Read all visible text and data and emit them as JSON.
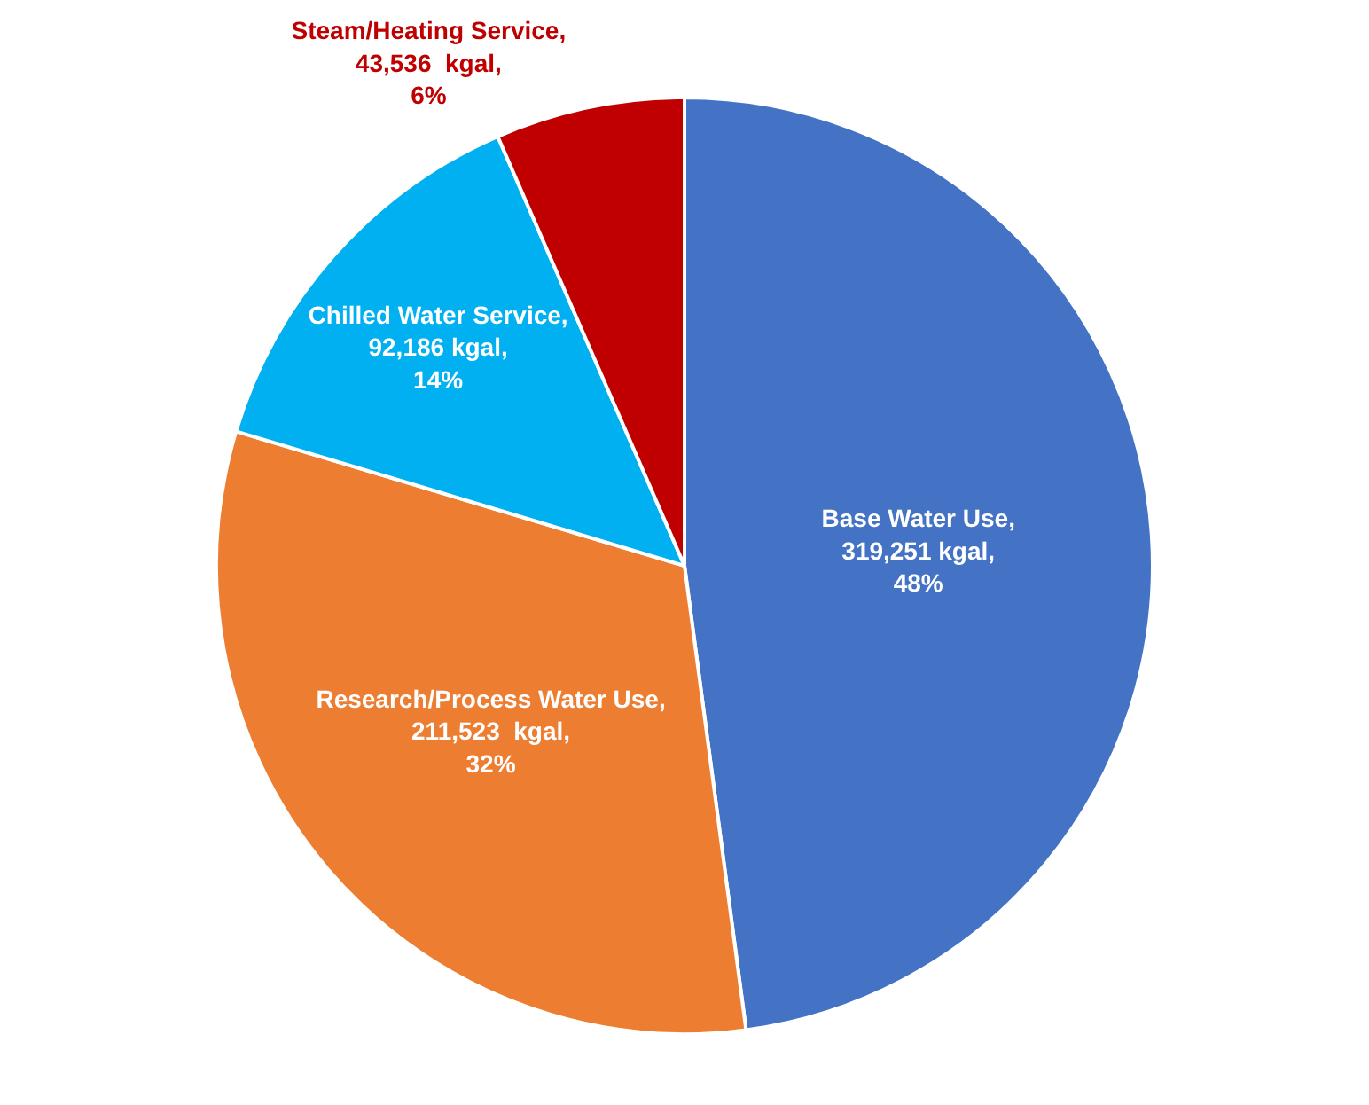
{
  "chart_data": {
    "type": "pie",
    "categories": [
      "Base Water Use",
      "Research/Process Water Use",
      "Chilled Water Service",
      "Steam/Heating Service"
    ],
    "values": [
      319251,
      211523,
      92186,
      43536
    ],
    "colors": [
      "#4472c4",
      "#ed7d31",
      "#00b0f0",
      "#c00000"
    ],
    "value_labels": [
      ",\n319,251 kgal,\n48%",
      ",\n211,523  kgal,\n32%",
      ",\n92,186 kgal,\n14%",
      ",\n43,536  kgal,\n6%"
    ],
    "legend": false
  }
}
